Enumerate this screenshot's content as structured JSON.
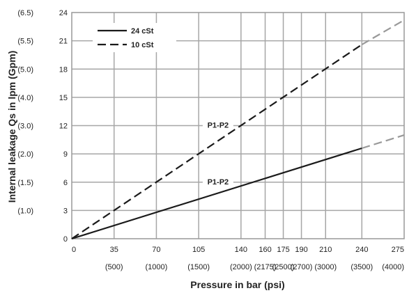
{
  "chart_data": {
    "type": "line",
    "xlabel": "Pressure in bar (psi)",
    "ylabel": "Internal leakage Qs in lpm (Gpm)",
    "xlim": [
      0,
      275
    ],
    "ylim": [
      0,
      24
    ],
    "x_ticks": [
      {
        "value": 0,
        "label": "0",
        "sublabel": ""
      },
      {
        "value": 35,
        "label": "35",
        "sublabel": "(500)"
      },
      {
        "value": 70,
        "label": "70",
        "sublabel": "(1000)"
      },
      {
        "value": 105,
        "label": "105",
        "sublabel": "(1500)"
      },
      {
        "value": 140,
        "label": "140",
        "sublabel": "(2000)"
      },
      {
        "value": 160,
        "label": "160",
        "sublabel": "(2175)"
      },
      {
        "value": 175,
        "label": "175",
        "sublabel": "(2500)"
      },
      {
        "value": 190,
        "label": "190",
        "sublabel": "(2700)"
      },
      {
        "value": 210,
        "label": "210",
        "sublabel": "(3000)"
      },
      {
        "value": 240,
        "label": "240",
        "sublabel": "(3500)"
      },
      {
        "value": 275,
        "label": "275",
        "sublabel": "(4000)"
      }
    ],
    "y_ticks": [
      {
        "value": 0,
        "label": "0",
        "sublabel": ""
      },
      {
        "value": 3,
        "label": "3",
        "sublabel": "(1.0)"
      },
      {
        "value": 6,
        "label": "6",
        "sublabel": "(1.5)"
      },
      {
        "value": 9,
        "label": "9",
        "sublabel": "(2.0)"
      },
      {
        "value": 12,
        "label": "12",
        "sublabel": "(3.0)"
      },
      {
        "value": 15,
        "label": "15",
        "sublabel": "(4.0)"
      },
      {
        "value": 18,
        "label": "18",
        "sublabel": "(5.0)"
      },
      {
        "value": 21,
        "label": "21",
        "sublabel": "(5.5)"
      },
      {
        "value": 24,
        "label": "24",
        "sublabel": "(6.5)"
      }
    ],
    "grid": true,
    "legend": {
      "position": "top-left"
    },
    "series": [
      {
        "name": "24 cSt",
        "style": "solid",
        "color": "#1a1a1a",
        "extension_color": "#999999",
        "points": [
          [
            0,
            0
          ],
          [
            240,
            9.6
          ]
        ],
        "extension": [
          [
            240,
            9.6
          ],
          [
            275,
            11.0
          ]
        ]
      },
      {
        "name": "10 cSt",
        "style": "dashed",
        "color": "#1a1a1a",
        "extension_color": "#999999",
        "points": [
          [
            0,
            0
          ],
          [
            240,
            20.6
          ]
        ],
        "extension": [
          [
            240,
            20.6
          ],
          [
            275,
            23.2
          ]
        ]
      }
    ],
    "annotations": [
      {
        "text": "P1-P2",
        "x": 121,
        "y": 12.0
      },
      {
        "text": "P1-P2",
        "x": 121,
        "y": 6.0
      }
    ]
  }
}
